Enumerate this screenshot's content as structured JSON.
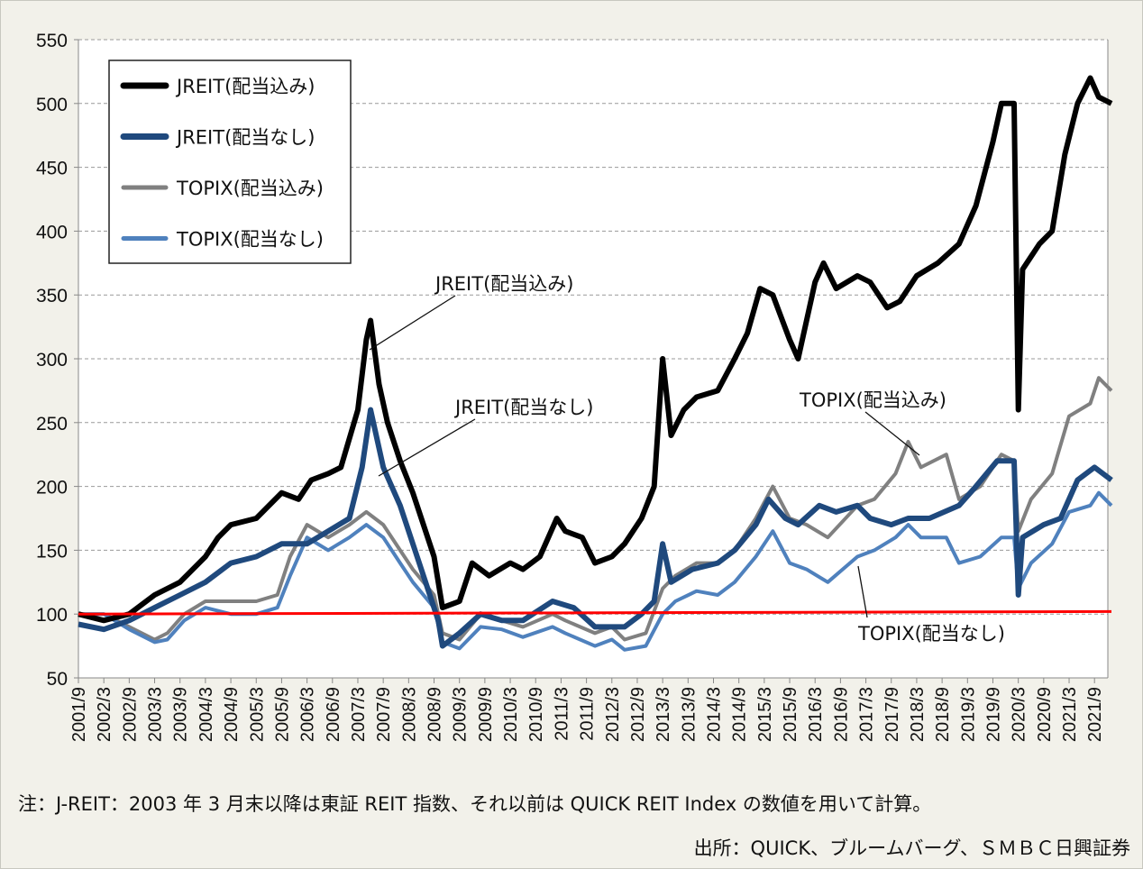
{
  "chart_data": {
    "type": "line",
    "title": "",
    "xlabel": "",
    "ylabel": "",
    "ylim": [
      50,
      550
    ],
    "yticks": [
      50,
      100,
      150,
      200,
      250,
      300,
      350,
      400,
      450,
      500,
      550
    ],
    "xlim": [
      "2001-09",
      "2022-01"
    ],
    "xtick_labels": [
      "2001/9",
      "2002/3",
      "2002/9",
      "2003/3",
      "2003/9",
      "2004/3",
      "2004/9",
      "2005/3",
      "2005/9",
      "2006/3",
      "2006/9",
      "2007/3",
      "2007/9",
      "2008/3",
      "2008/9",
      "2009/3",
      "2009/9",
      "2010/3",
      "2010/9",
      "2011/3",
      "2011/9",
      "2012/3",
      "2012/9",
      "2013/3",
      "2013/9",
      "2014/3",
      "2014/9",
      "2015/3",
      "2015/9",
      "2016/3",
      "2016/9",
      "2017/3",
      "2017/9",
      "2018/3",
      "2018/9",
      "2019/3",
      "2019/9",
      "2020/3",
      "2020/9",
      "2021/3",
      "2021/9"
    ],
    "grid": "horizontal dashed",
    "legend_placement": "top-left",
    "series": [
      {
        "name": "JREIT(配当込み)",
        "color": "#000000",
        "points": [
          [
            "2001-09",
            100
          ],
          [
            "2002-03",
            95
          ],
          [
            "2002-09",
            100
          ],
          [
            "2003-03",
            115
          ],
          [
            "2003-09",
            125
          ],
          [
            "2004-03",
            145
          ],
          [
            "2004-06",
            160
          ],
          [
            "2004-09",
            170
          ],
          [
            "2005-03",
            175
          ],
          [
            "2005-09",
            195
          ],
          [
            "2006-01",
            190
          ],
          [
            "2006-04",
            205
          ],
          [
            "2006-08",
            210
          ],
          [
            "2006-11",
            215
          ],
          [
            "2007-03",
            260
          ],
          [
            "2007-05",
            315
          ],
          [
            "2007-06",
            330
          ],
          [
            "2007-08",
            280
          ],
          [
            "2007-10",
            250
          ],
          [
            "2008-01",
            220
          ],
          [
            "2008-04",
            195
          ],
          [
            "2008-06",
            175
          ],
          [
            "2008-09",
            145
          ],
          [
            "2008-11",
            105
          ],
          [
            "2009-03",
            110
          ],
          [
            "2009-06",
            140
          ],
          [
            "2009-10",
            130
          ],
          [
            "2010-03",
            140
          ],
          [
            "2010-06",
            135
          ],
          [
            "2010-10",
            145
          ],
          [
            "2011-02",
            175
          ],
          [
            "2011-04",
            165
          ],
          [
            "2011-08",
            160
          ],
          [
            "2011-11",
            140
          ],
          [
            "2012-03",
            145
          ],
          [
            "2012-06",
            155
          ],
          [
            "2012-10",
            175
          ],
          [
            "2013-01",
            200
          ],
          [
            "2013-03",
            300
          ],
          [
            "2013-05",
            240
          ],
          [
            "2013-08",
            260
          ],
          [
            "2013-11",
            270
          ],
          [
            "2014-04",
            275
          ],
          [
            "2014-08",
            300
          ],
          [
            "2014-11",
            320
          ],
          [
            "2015-02",
            355
          ],
          [
            "2015-05",
            350
          ],
          [
            "2015-09",
            315
          ],
          [
            "2015-11",
            300
          ],
          [
            "2016-03",
            360
          ],
          [
            "2016-05",
            375
          ],
          [
            "2016-08",
            355
          ],
          [
            "2017-01",
            365
          ],
          [
            "2017-04",
            360
          ],
          [
            "2017-08",
            340
          ],
          [
            "2017-11",
            345
          ],
          [
            "2018-03",
            365
          ],
          [
            "2018-08",
            375
          ],
          [
            "2019-01",
            390
          ],
          [
            "2019-05",
            420
          ],
          [
            "2019-09",
            470
          ],
          [
            "2019-11",
            500
          ],
          [
            "2020-02",
            500
          ],
          [
            "2020-03",
            260
          ],
          [
            "2020-04",
            370
          ],
          [
            "2020-08",
            390
          ],
          [
            "2020-11",
            400
          ],
          [
            "2021-02",
            460
          ],
          [
            "2021-05",
            500
          ],
          [
            "2021-08",
            520
          ],
          [
            "2021-10",
            505
          ],
          [
            "2022-01",
            500
          ]
        ]
      },
      {
        "name": "JREIT(配当なし)",
        "color": "#1f497d",
        "points": [
          [
            "2001-09",
            92
          ],
          [
            "2002-03",
            88
          ],
          [
            "2002-09",
            95
          ],
          [
            "2003-03",
            105
          ],
          [
            "2003-09",
            115
          ],
          [
            "2004-03",
            125
          ],
          [
            "2004-09",
            140
          ],
          [
            "2005-03",
            145
          ],
          [
            "2005-09",
            155
          ],
          [
            "2006-03",
            155
          ],
          [
            "2006-08",
            165
          ],
          [
            "2007-01",
            175
          ],
          [
            "2007-04",
            215
          ],
          [
            "2007-06",
            260
          ],
          [
            "2007-09",
            215
          ],
          [
            "2008-01",
            185
          ],
          [
            "2008-06",
            135
          ],
          [
            "2008-10",
            95
          ],
          [
            "2008-11",
            75
          ],
          [
            "2009-03",
            85
          ],
          [
            "2009-08",
            100
          ],
          [
            "2010-01",
            95
          ],
          [
            "2010-06",
            95
          ],
          [
            "2011-01",
            110
          ],
          [
            "2011-06",
            105
          ],
          [
            "2011-11",
            90
          ],
          [
            "2012-06",
            90
          ],
          [
            "2012-10",
            100
          ],
          [
            "2013-01",
            110
          ],
          [
            "2013-03",
            155
          ],
          [
            "2013-05",
            125
          ],
          [
            "2013-10",
            135
          ],
          [
            "2014-04",
            140
          ],
          [
            "2014-08",
            150
          ],
          [
            "2015-01",
            170
          ],
          [
            "2015-04",
            190
          ],
          [
            "2015-08",
            175
          ],
          [
            "2015-11",
            170
          ],
          [
            "2016-04",
            185
          ],
          [
            "2016-08",
            180
          ],
          [
            "2017-01",
            185
          ],
          [
            "2017-04",
            175
          ],
          [
            "2017-09",
            170
          ],
          [
            "2018-01",
            175
          ],
          [
            "2018-06",
            175
          ],
          [
            "2019-01",
            185
          ],
          [
            "2019-05",
            200
          ],
          [
            "2019-10",
            220
          ],
          [
            "2020-02",
            220
          ],
          [
            "2020-03",
            115
          ],
          [
            "2020-04",
            160
          ],
          [
            "2020-09",
            170
          ],
          [
            "2021-01",
            175
          ],
          [
            "2021-05",
            205
          ],
          [
            "2021-09",
            215
          ],
          [
            "2022-01",
            205
          ]
        ]
      },
      {
        "name": "TOPIX(配当込み)",
        "color": "#808080",
        "points": [
          [
            "2001-09",
            100
          ],
          [
            "2002-03",
            100
          ],
          [
            "2002-09",
            90
          ],
          [
            "2003-03",
            80
          ],
          [
            "2003-06",
            85
          ],
          [
            "2003-10",
            100
          ],
          [
            "2004-03",
            110
          ],
          [
            "2004-09",
            110
          ],
          [
            "2005-03",
            110
          ],
          [
            "2005-08",
            115
          ],
          [
            "2005-11",
            145
          ],
          [
            "2006-03",
            170
          ],
          [
            "2006-08",
            160
          ],
          [
            "2007-01",
            170
          ],
          [
            "2007-05",
            180
          ],
          [
            "2007-09",
            170
          ],
          [
            "2008-01",
            150
          ],
          [
            "2008-04",
            135
          ],
          [
            "2008-09",
            115
          ],
          [
            "2008-11",
            85
          ],
          [
            "2009-03",
            80
          ],
          [
            "2009-08",
            100
          ],
          [
            "2010-01",
            95
          ],
          [
            "2010-06",
            90
          ],
          [
            "2011-01",
            100
          ],
          [
            "2011-04",
            95
          ],
          [
            "2011-11",
            85
          ],
          [
            "2012-03",
            90
          ],
          [
            "2012-06",
            80
          ],
          [
            "2012-11",
            85
          ],
          [
            "2013-03",
            120
          ],
          [
            "2013-06",
            130
          ],
          [
            "2013-11",
            140
          ],
          [
            "2014-04",
            140
          ],
          [
            "2014-08",
            150
          ],
          [
            "2015-01",
            175
          ],
          [
            "2015-05",
            200
          ],
          [
            "2015-09",
            175
          ],
          [
            "2016-01",
            170
          ],
          [
            "2016-06",
            160
          ],
          [
            "2017-01",
            185
          ],
          [
            "2017-05",
            190
          ],
          [
            "2017-10",
            210
          ],
          [
            "2018-01",
            235
          ],
          [
            "2018-04",
            215
          ],
          [
            "2018-10",
            225
          ],
          [
            "2019-01",
            190
          ],
          [
            "2019-06",
            200
          ],
          [
            "2019-11",
            225
          ],
          [
            "2020-02",
            220
          ],
          [
            "2020-03",
            165
          ],
          [
            "2020-06",
            190
          ],
          [
            "2020-11",
            210
          ],
          [
            "2021-03",
            255
          ],
          [
            "2021-08",
            265
          ],
          [
            "2021-10",
            285
          ],
          [
            "2022-01",
            275
          ]
        ]
      },
      {
        "name": "TOPIX(配当なし)",
        "color": "#4f81bd",
        "points": [
          [
            "2001-09",
            100
          ],
          [
            "2002-03",
            100
          ],
          [
            "2002-09",
            88
          ],
          [
            "2003-03",
            78
          ],
          [
            "2003-06",
            80
          ],
          [
            "2003-10",
            95
          ],
          [
            "2004-03",
            105
          ],
          [
            "2004-09",
            100
          ],
          [
            "2005-03",
            100
          ],
          [
            "2005-08",
            105
          ],
          [
            "2005-11",
            130
          ],
          [
            "2006-03",
            160
          ],
          [
            "2006-08",
            150
          ],
          [
            "2007-01",
            160
          ],
          [
            "2007-05",
            170
          ],
          [
            "2007-09",
            160
          ],
          [
            "2008-01",
            140
          ],
          [
            "2008-04",
            125
          ],
          [
            "2008-09",
            105
          ],
          [
            "2008-11",
            78
          ],
          [
            "2009-03",
            73
          ],
          [
            "2009-08",
            90
          ],
          [
            "2010-01",
            88
          ],
          [
            "2010-06",
            82
          ],
          [
            "2011-01",
            90
          ],
          [
            "2011-04",
            85
          ],
          [
            "2011-11",
            75
          ],
          [
            "2012-03",
            80
          ],
          [
            "2012-06",
            72
          ],
          [
            "2012-11",
            75
          ],
          [
            "2013-03",
            100
          ],
          [
            "2013-06",
            110
          ],
          [
            "2013-11",
            118
          ],
          [
            "2014-04",
            115
          ],
          [
            "2014-08",
            125
          ],
          [
            "2015-01",
            145
          ],
          [
            "2015-05",
            165
          ],
          [
            "2015-09",
            140
          ],
          [
            "2016-01",
            135
          ],
          [
            "2016-06",
            125
          ],
          [
            "2017-01",
            145
          ],
          [
            "2017-05",
            150
          ],
          [
            "2017-10",
            160
          ],
          [
            "2018-01",
            170
          ],
          [
            "2018-04",
            160
          ],
          [
            "2018-10",
            160
          ],
          [
            "2019-01",
            140
          ],
          [
            "2019-06",
            145
          ],
          [
            "2019-11",
            160
          ],
          [
            "2020-02",
            160
          ],
          [
            "2020-03",
            120
          ],
          [
            "2020-06",
            140
          ],
          [
            "2020-11",
            155
          ],
          [
            "2021-03",
            180
          ],
          [
            "2021-08",
            185
          ],
          [
            "2021-10",
            195
          ],
          [
            "2022-01",
            185
          ]
        ]
      },
      {
        "color": "#ff0000",
        "points": [
          [
            "2001-09",
            100
          ],
          [
            "2022-01",
            102
          ]
        ]
      }
    ],
    "annotations": [
      {
        "text": "JREIT(配当込み)",
        "target": [
          "2007-06",
          315
        ]
      },
      {
        "text": "JREIT(配当なし)",
        "target": [
          "2007-07",
          210
        ]
      },
      {
        "text": "TOPIX(配当込み)",
        "target": [
          "2017-11",
          225
        ]
      },
      {
        "text": "TOPIX(配当なし)",
        "target": [
          "2017-02",
          135
        ]
      }
    ]
  },
  "footer": {
    "note": "注：J-REIT：2003 年 3 月末以降は東証 REIT 指数、それ以前は QUICK REIT Index の数値を用いて計算。",
    "source": "出所：QUICK、ブルームバーグ、ＳＭＢＣ日興証券"
  }
}
